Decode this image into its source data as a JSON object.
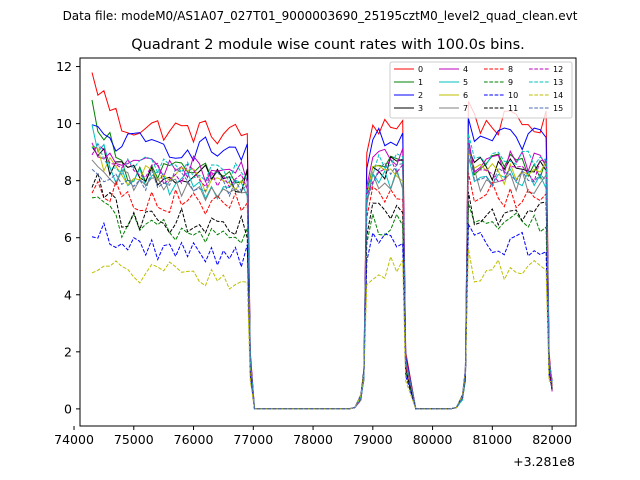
{
  "suptitle": "Data file: modeM0/AS1A07_027T01_9000003690_25195cztM0_level2_quad_clean.evt",
  "chart_data": {
    "type": "line",
    "title": "Quadrant 2 module wise count rates with 100.0s bins.",
    "xlabel": "",
    "ylabel": "",
    "x_offset_label": "+3.281e8",
    "xlim": [
      74100,
      82400
    ],
    "ylim": [
      -0.6,
      12.3
    ],
    "xticks": [
      74000,
      75000,
      76000,
      77000,
      78000,
      79000,
      80000,
      81000,
      82000
    ],
    "yticks": [
      0,
      2,
      4,
      6,
      8,
      10,
      12
    ],
    "legend_position": "top-right",
    "segments": [
      {
        "t0": 74300,
        "t1": 76900,
        "gap_start": 77000,
        "gap_end": 78700
      },
      {
        "t0": 78900,
        "t1": 79500,
        "gap_start": 79700,
        "gap_end": 80400
      },
      {
        "t0": 80600,
        "t1": 81900,
        "gap_start": 82000,
        "gap_end": 82000
      }
    ],
    "series": [
      {
        "name": "0",
        "color": "#ff0000",
        "dash": "solid",
        "level": 10.0,
        "start": 11.6
      },
      {
        "name": "1",
        "color": "#008000",
        "dash": "solid",
        "level": 8.5,
        "start": 10.6
      },
      {
        "name": "2",
        "color": "#0000ff",
        "dash": "solid",
        "level": 9.4,
        "start": 9.7
      },
      {
        "name": "3",
        "color": "#000000",
        "dash": "solid",
        "level": 8.4,
        "start": 8.9
      },
      {
        "name": "4",
        "color": "#bf00bf",
        "dash": "solid",
        "level": 8.7,
        "start": 9.0
      },
      {
        "name": "5",
        "color": "#00bfbf",
        "dash": "solid",
        "level": 8.1,
        "start": 9.6
      },
      {
        "name": "6",
        "color": "#bfbf00",
        "dash": "solid",
        "level": 8.3,
        "start": 8.8
      },
      {
        "name": "7",
        "color": "#808080",
        "dash": "solid",
        "level": 8.0,
        "start": 8.3
      },
      {
        "name": "8",
        "color": "#ff0000",
        "dash": "dashed",
        "level": 7.5,
        "start": 8.0
      },
      {
        "name": "9",
        "color": "#008000",
        "dash": "dashed",
        "level": 6.5,
        "start": 7.8
      },
      {
        "name": "10",
        "color": "#0000ff",
        "dash": "dashed",
        "level": 5.8,
        "start": 6.4
      },
      {
        "name": "11",
        "color": "#000000",
        "dash": "dashed",
        "level": 6.8,
        "start": 8.1
      },
      {
        "name": "12",
        "color": "#bf00bf",
        "dash": "dashed",
        "level": 8.4,
        "start": 9.2
      },
      {
        "name": "13",
        "color": "#00bfbf",
        "dash": "dashed",
        "level": 8.6,
        "start": 9.4
      },
      {
        "name": "14",
        "color": "#bfbf00",
        "dash": "dashed",
        "level": 4.9,
        "start": 5.0
      },
      {
        "name": "15",
        "color": "#4b6cb7",
        "dash": "dashed",
        "level": 8.2,
        "start": 8.6
      }
    ]
  }
}
